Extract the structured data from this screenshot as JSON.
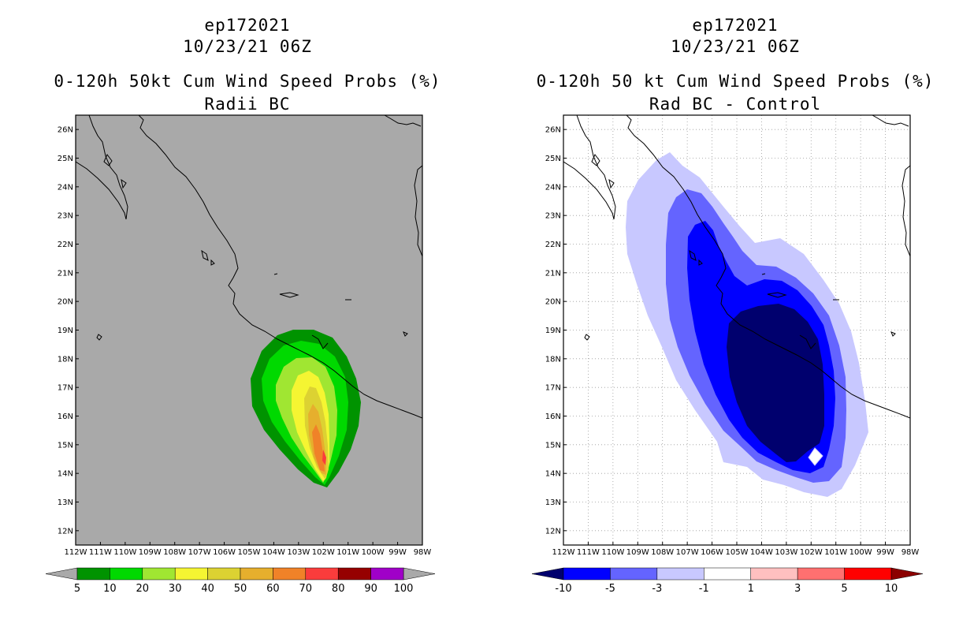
{
  "left": {
    "title_line1": "ep172021",
    "title_line2": "10/23/21 06Z",
    "title_line3": "0-120h 50kt Cum Wind Speed Probs (%)",
    "title_line4": "Radii BC",
    "background_color": "#a9a9a9",
    "colorbar": {
      "labels": [
        "5",
        "10",
        "20",
        "30",
        "40",
        "50",
        "60",
        "70",
        "80",
        "90",
        "100"
      ],
      "colors": [
        "#009300",
        "#00d900",
        "#a0e632",
        "#f5f532",
        "#dcd232",
        "#e6af2d",
        "#f08228",
        "#fa3c3c",
        "#960000",
        "#a000c8"
      ],
      "under_color": "#a9a9a9",
      "over_color": "#a9a9a9"
    }
  },
  "right": {
    "title_line1": "ep172021",
    "title_line2": "10/23/21 06Z",
    "title_line3": "0-120h 50 kt Cum Wind Speed Probs (%)",
    "title_line4": "Rad BC - Control",
    "background_color": "#ffffff",
    "colorbar": {
      "labels": [
        "-10",
        "-5",
        "-3",
        "-1",
        "1",
        "3",
        "5",
        "10"
      ],
      "colors": [
        "#0000ff",
        "#6464ff",
        "#c8c8ff",
        "#ffffff",
        "#ffc0c0",
        "#ff7070",
        "#ff0000"
      ],
      "under_color": "#00006e",
      "over_color": "#8c0000"
    }
  },
  "axes": {
    "lat_labels": [
      "26N",
      "25N",
      "24N",
      "23N",
      "22N",
      "21N",
      "20N",
      "19N",
      "18N",
      "17N",
      "16N",
      "15N",
      "14N",
      "13N",
      "12N"
    ],
    "lon_labels": [
      "112W",
      "111W",
      "110W",
      "109W",
      "108W",
      "107W",
      "106W",
      "105W",
      "104W",
      "103W",
      "102W",
      "101W",
      "100W",
      "99W",
      "98W"
    ]
  },
  "map_extent": {
    "lon_min": -112,
    "lon_max": -98,
    "lat_min": 11.5,
    "lat_max": 26.5
  }
}
